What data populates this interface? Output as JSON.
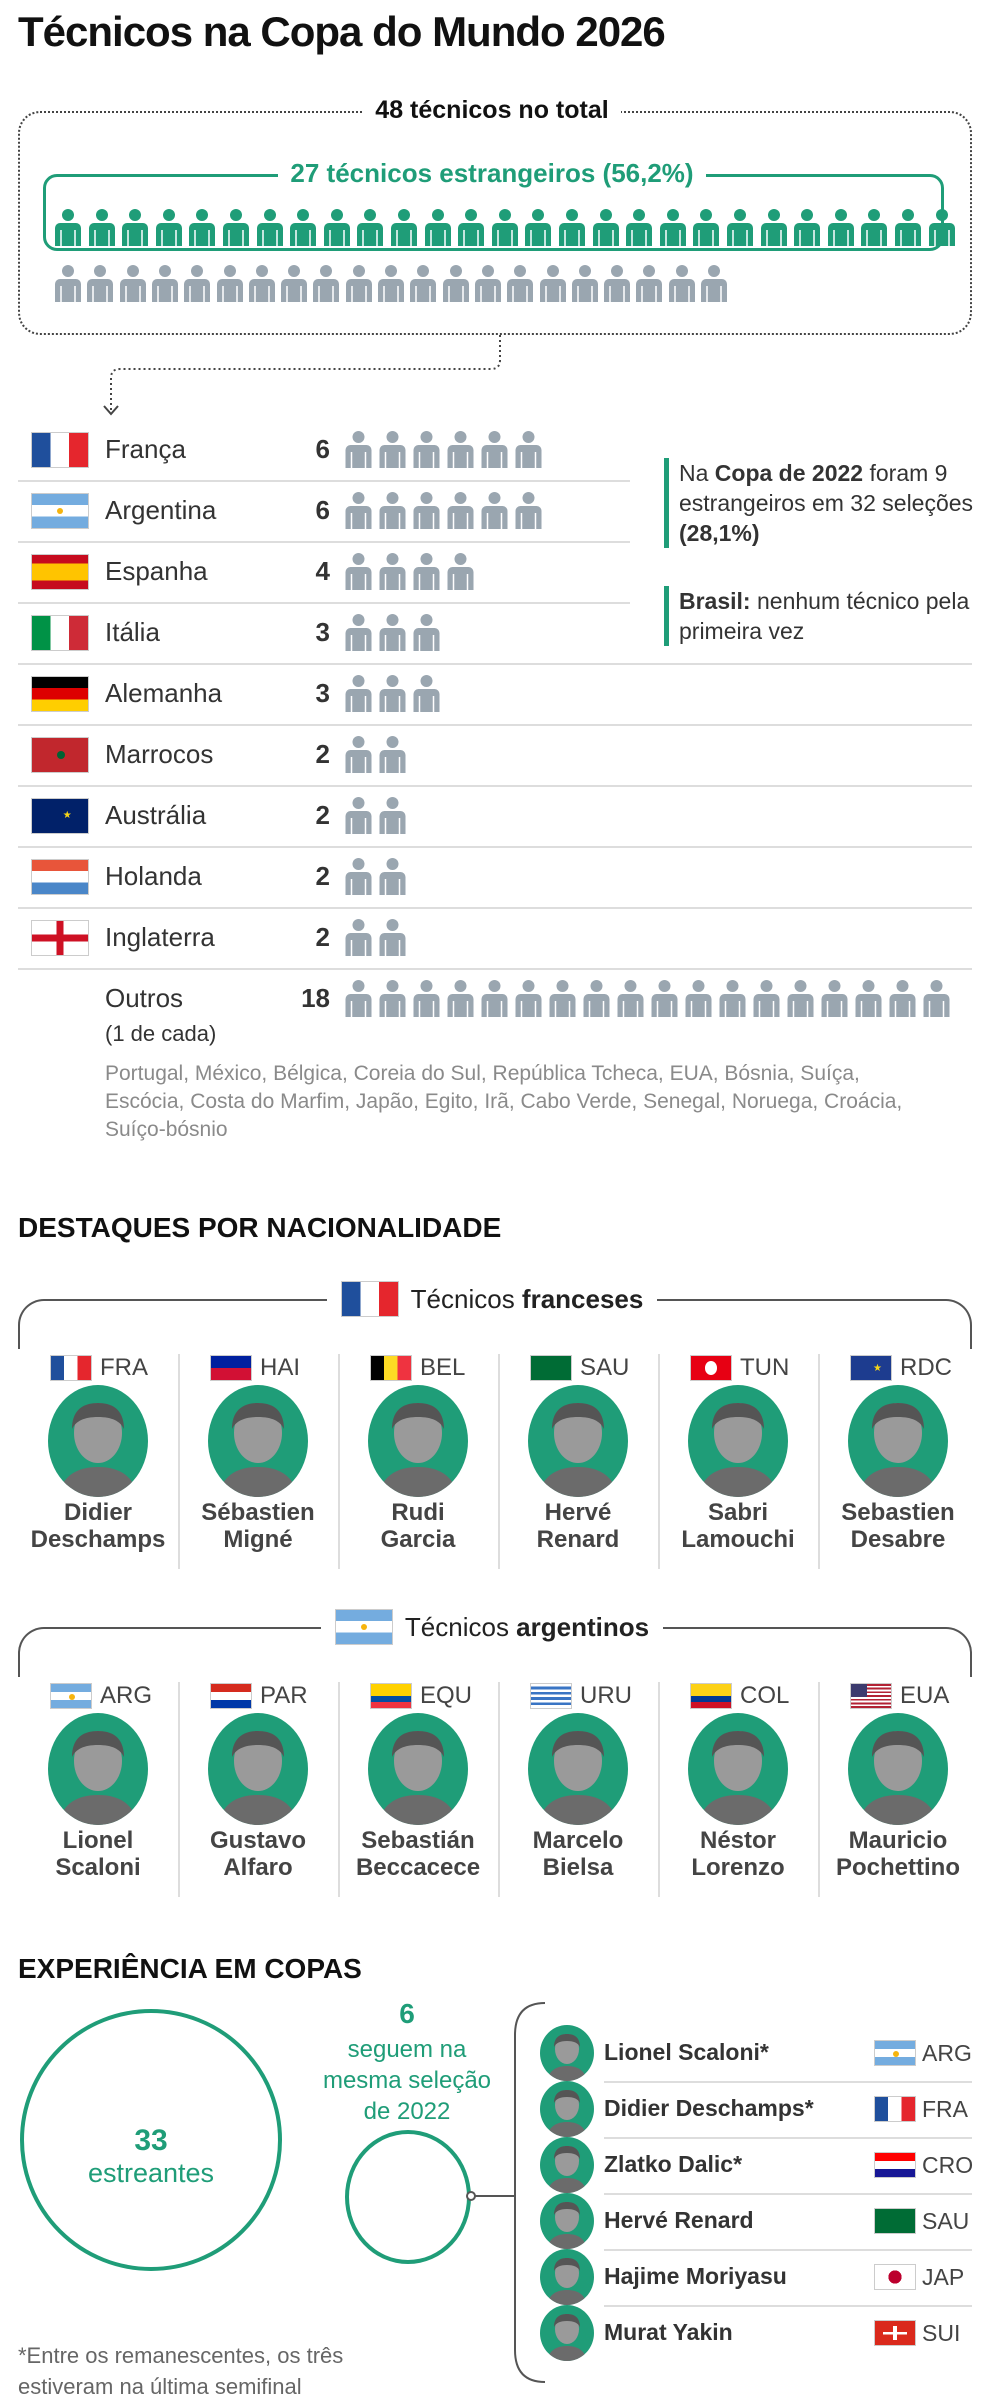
{
  "title": "Técnicos na Copa do Mundo 2026",
  "summary": {
    "total_label": "48 técnicos no total",
    "foreign_label": "27 técnicos estrangeiros (56,2%)",
    "foreign_count": 27,
    "domestic_count": 21,
    "colors": {
      "foreign": "#1f9d78",
      "domestic": "#9aa6b0"
    }
  },
  "countries": [
    {
      "name": "França",
      "count": "6",
      "n": 6,
      "flag": "fr"
    },
    {
      "name": "Argentina",
      "count": "6",
      "n": 6,
      "flag": "ar"
    },
    {
      "name": "Espanha",
      "count": "4",
      "n": 4,
      "flag": "es"
    },
    {
      "name": "Itália",
      "count": "3",
      "n": 3,
      "flag": "it"
    },
    {
      "name": "Alemanha",
      "count": "3",
      "n": 3,
      "flag": "de"
    },
    {
      "name": "Marrocos",
      "count": "2",
      "n": 2,
      "flag": "ma"
    },
    {
      "name": "Austrália",
      "count": "2",
      "n": 2,
      "flag": "au"
    },
    {
      "name": "Holanda",
      "count": "2",
      "n": 2,
      "flag": "nl"
    },
    {
      "name": "Inglaterra",
      "count": "2",
      "n": 2,
      "flag": "en"
    }
  ],
  "others": {
    "label": "Outros",
    "sub": "(1 de cada)",
    "count": "18",
    "n": 18,
    "list": "Portugal, México, Bélgica, Coreia do Sul, República Tcheca, EUA, Bósnia, Suíça, Escócia, Costa do Marfim, Japão, Egito, Irã, Cabo Verde, Senegal, Noruega, Croácia, Suíço-bósnio"
  },
  "notes": [
    {
      "parts": [
        {
          "t": "Na ",
          "b": false
        },
        {
          "t": "Copa de 2022",
          "b": true
        },
        {
          "t": " foram 9 estrangeiros em 32 seleções ",
          "b": false
        },
        {
          "t": "(28,1%)",
          "b": true
        }
      ]
    },
    {
      "parts": [
        {
          "t": "Brasil:",
          "b": true
        },
        {
          "t": " nenhum técnico pela primeira vez",
          "b": false
        }
      ]
    }
  ],
  "nationality": {
    "title": "DESTAQUES POR NACIONALIDADE",
    "groups": [
      {
        "prefix": "Técnicos ",
        "bold": "franceses",
        "flag": "fr",
        "coaches": [
          {
            "code": "FRA",
            "flag": "fr",
            "first": "Didier",
            "last": "Deschamps"
          },
          {
            "code": "HAI",
            "flag": "ht",
            "first": "Sébastien",
            "last": "Migné"
          },
          {
            "code": "BEL",
            "flag": "be",
            "first": "Rudi",
            "last": "Garcia"
          },
          {
            "code": "SAU",
            "flag": "sa",
            "first": "Hervé",
            "last": "Renard"
          },
          {
            "code": "TUN",
            "flag": "tn",
            "first": "Sabri",
            "last": "Lamouchi"
          },
          {
            "code": "RDC",
            "flag": "cd",
            "first": "Sebastien",
            "last": "Desabre"
          }
        ]
      },
      {
        "prefix": "Técnicos ",
        "bold": "argentinos",
        "flag": "ar",
        "coaches": [
          {
            "code": "ARG",
            "flag": "ar",
            "first": "Lionel",
            "last": "Scaloni"
          },
          {
            "code": "PAR",
            "flag": "py",
            "first": "Gustavo",
            "last": "Alfaro"
          },
          {
            "code": "EQU",
            "flag": "ec",
            "first": "Sebastián",
            "last": "Beccacece"
          },
          {
            "code": "URU",
            "flag": "uy",
            "first": "Marcelo",
            "last": "Bielsa"
          },
          {
            "code": "COL",
            "flag": "co",
            "first": "Néstor",
            "last": "Lorenzo"
          },
          {
            "code": "EUA",
            "flag": "us",
            "first": "Mauricio",
            "last": "Pochettino"
          }
        ]
      }
    ]
  },
  "experience": {
    "title": "EXPERIÊNCIA EM COPAS",
    "debut_count": "33",
    "debut_label": "estreantes",
    "same_count": "6",
    "same_lines": [
      "seguem na",
      "mesma seleção",
      "de 2022"
    ],
    "coaches": [
      {
        "name": "Lionel Scaloni*",
        "code": "ARG",
        "flag": "ar"
      },
      {
        "name": "Didier Deschamps*",
        "code": "FRA",
        "flag": "fr"
      },
      {
        "name": "Zlatko Dalic*",
        "code": "CRO",
        "flag": "hr"
      },
      {
        "name": "Hervé Renard",
        "code": "SAU",
        "flag": "sa"
      },
      {
        "name": "Hajime Moriyasu",
        "code": "JAP",
        "flag": "jp"
      },
      {
        "name": "Murat Yakin",
        "code": "SUI",
        "flag": "ch"
      }
    ],
    "footnote": [
      "*Entre os remanescentes, os três",
      "estiveram na última semifinal"
    ]
  }
}
